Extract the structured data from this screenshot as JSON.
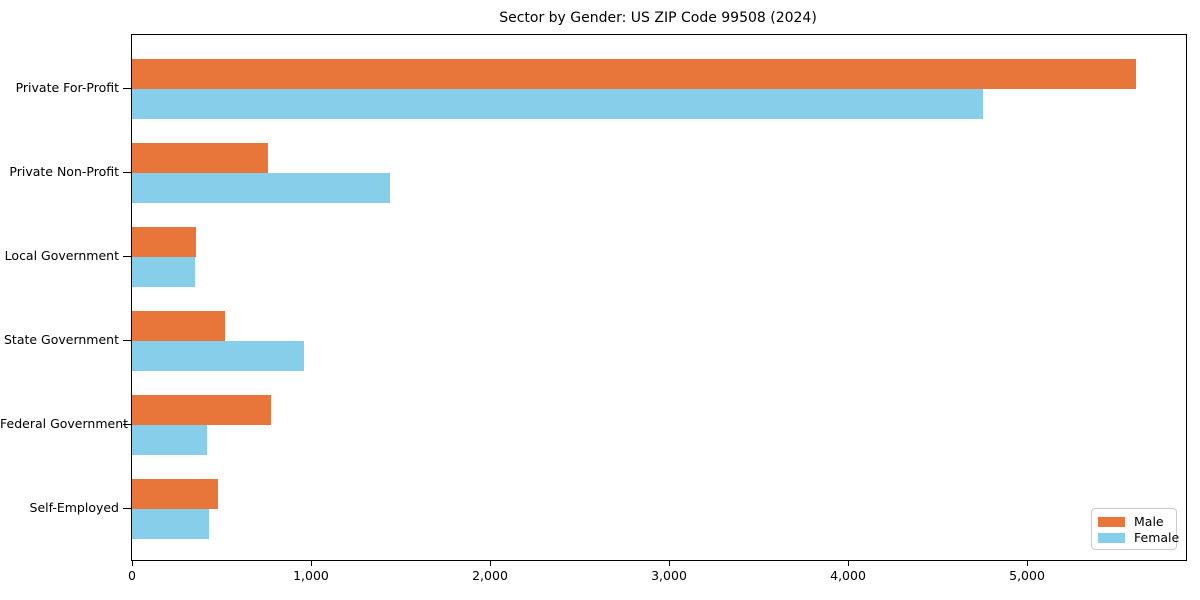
{
  "title": "Sector by Gender: US ZIP Code 99508 (2024)",
  "chart_data": {
    "type": "bar",
    "orientation": "horizontal",
    "title": "Sector by Gender: US ZIP Code 99508 (2024)",
    "xlabel": "",
    "ylabel": "",
    "categories": [
      "Private For-Profit",
      "Private Non-Profit",
      "Local Government",
      "State Government",
      "Federal Government",
      "Self-Employed"
    ],
    "series": [
      {
        "name": "Male",
        "color": "#E8763B",
        "values": [
          5610,
          760,
          355,
          520,
          775,
          480
        ]
      },
      {
        "name": "Female",
        "color": "#87CEEB",
        "values": [
          4755,
          1440,
          350,
          960,
          420,
          430
        ]
      }
    ],
    "xlim": [
      0,
      5888
    ],
    "xticks": [
      0,
      1000,
      2000,
      3000,
      4000,
      5000
    ],
    "xtick_labels": [
      "0",
      "1,000",
      "2,000",
      "3,000",
      "4,000",
      "5,000"
    ],
    "grid": false,
    "legend_position": "lower right"
  },
  "colors": {
    "male": "#E8763B",
    "female": "#87CEEB",
    "axis": "#000000",
    "background": "#ffffff",
    "legend_border": "#cccccc"
  }
}
